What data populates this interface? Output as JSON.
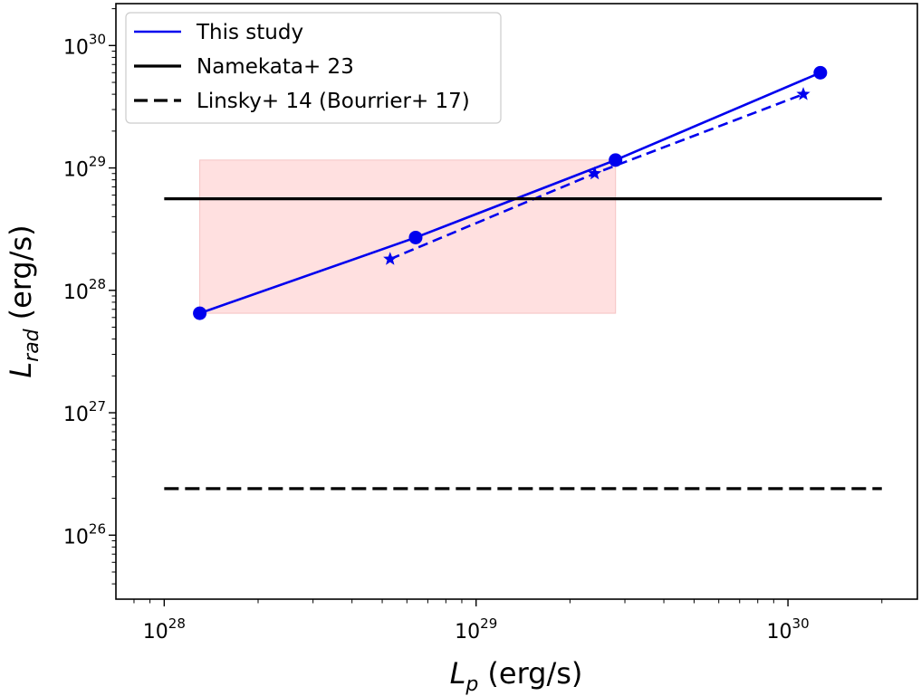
{
  "chart_data": {
    "type": "line",
    "xscale": "log",
    "yscale": "log",
    "xlim": [
      7e+27,
      2.6e+30
    ],
    "ylim": [
      3e+25,
      2.2e+30
    ],
    "xticks": [
      {
        "value": 1e+28,
        "base": "10",
        "exp": "28"
      },
      {
        "value": 1e+29,
        "base": "10",
        "exp": "29"
      },
      {
        "value": 1e+30,
        "base": "10",
        "exp": "30"
      }
    ],
    "yticks": [
      {
        "value": 1e+26,
        "base": "10",
        "exp": "26"
      },
      {
        "value": 1e+27,
        "base": "10",
        "exp": "27"
      },
      {
        "value": 1e+28,
        "base": "10",
        "exp": "28"
      },
      {
        "value": 1e+29,
        "base": "10",
        "exp": "29"
      },
      {
        "value": 1e+30,
        "base": "10",
        "exp": "30"
      }
    ],
    "xlabel": {
      "main": "L",
      "sub": "p",
      "unit": "(erg/s)"
    },
    "ylabel": {
      "main": "L",
      "sub": "rad",
      "unit": "(erg/s)"
    },
    "legend_position": "upper-left",
    "series": [
      {
        "name": "This study",
        "color": "#0000ee",
        "linestyle": "solid",
        "marker": "circle",
        "x": [
          1.3e+28,
          6.4e+28,
          2.8e+29,
          1.27e+30
        ],
        "y": [
          6.5e+27,
          2.7e+28,
          1.16e+29,
          6e+29
        ]
      },
      {
        "name": "",
        "color": "#0000ee",
        "linestyle": "dashed",
        "marker": "star",
        "x": [
          5.3e+28,
          2.4e+29,
          1.12e+30
        ],
        "y": [
          1.8e+28,
          9e+28,
          4e+29
        ]
      },
      {
        "name": "Namekata+ 23",
        "color": "#000000",
        "linestyle": "solid",
        "marker": "none",
        "x": [
          1e+28,
          2e+30
        ],
        "y": [
          5.6e+28,
          5.6e+28
        ]
      },
      {
        "name": "Linsky+ 14 (Bourrier+ 17)",
        "color": "#000000",
        "linestyle": "dashed",
        "marker": "none",
        "x": [
          1e+28,
          2e+30
        ],
        "y": [
          2.4e+26,
          2.4e+26
        ]
      }
    ],
    "shaded_region": {
      "color": "#ffe0e0",
      "x": [
        1.3e+28,
        2.8e+29
      ],
      "y": [
        6.5e+27,
        1.16e+29
      ]
    },
    "legend": [
      {
        "label": "This study",
        "color": "#0000ee",
        "linestyle": "solid"
      },
      {
        "label": "Namekata+ 23",
        "color": "#000000",
        "linestyle": "solid"
      },
      {
        "label": "Linsky+ 14 (Bourrier+ 17)",
        "color": "#000000",
        "linestyle": "dashed"
      }
    ]
  }
}
